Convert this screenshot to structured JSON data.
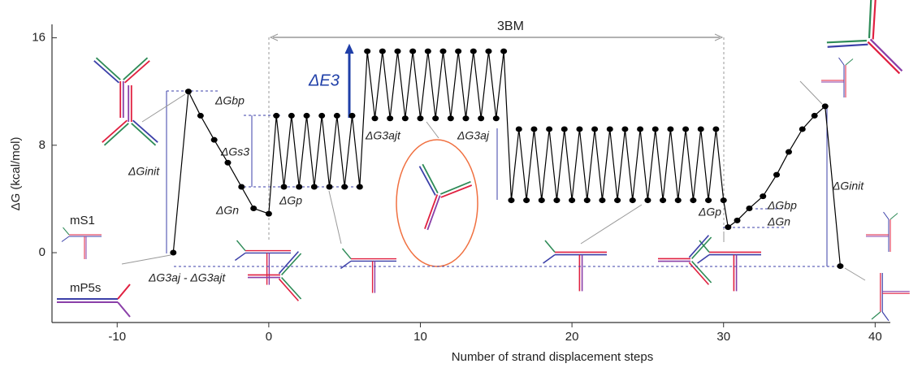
{
  "chart_data": {
    "type": "line",
    "xlabel": "Number of strand displacement steps",
    "ylabel": "ΔG (kcal/mol)",
    "color": "#000000",
    "xlim": [
      -14.3,
      41.0
    ],
    "ylim": [
      -5.2,
      17
    ],
    "xticks": [
      -10,
      0,
      10,
      20,
      30,
      40
    ],
    "yticks": [
      0,
      8,
      16
    ],
    "x": [
      -6.3,
      -5.3,
      -4.5,
      -3.6,
      -2.7,
      -1.8,
      -1.0,
      0,
      0.5,
      1,
      1.5,
      2,
      2.5,
      3,
      3.5,
      4,
      4.5,
      5,
      5.5,
      6,
      6.5,
      7,
      7.5,
      8,
      8.5,
      9,
      9.5,
      10,
      10.5,
      11,
      11.5,
      12,
      12.5,
      13,
      13.5,
      14,
      14.5,
      15,
      15.5,
      16,
      16.5,
      17,
      17.5,
      18,
      18.5,
      19,
      19.5,
      20,
      20.5,
      21,
      21.5,
      22,
      22.5,
      23,
      23.5,
      24,
      24.5,
      25,
      25.5,
      26,
      26.5,
      27,
      27.5,
      28,
      28.5,
      29,
      29.5,
      30,
      30.3,
      30.9,
      31.7,
      32.6,
      33.5,
      34.3,
      35.2,
      36.0,
      36.7,
      37.7
    ],
    "values": [
      0,
      12.0,
      10.2,
      8.4,
      6.7,
      4.9,
      3.3,
      2.9,
      10.2,
      4.9,
      10.2,
      4.9,
      10.2,
      4.9,
      10.2,
      4.9,
      10.2,
      4.9,
      10.2,
      4.9,
      15.0,
      10.0,
      15.0,
      10.0,
      15.0,
      10.0,
      15.0,
      10.0,
      15.0,
      10.0,
      15.0,
      10.0,
      15.0,
      10.0,
      15.0,
      10.0,
      15.0,
      10.0,
      15.0,
      3.9,
      9.2,
      3.9,
      9.2,
      3.9,
      9.2,
      3.9,
      9.2,
      3.9,
      9.2,
      3.9,
      9.2,
      3.9,
      9.2,
      3.9,
      9.2,
      3.9,
      9.2,
      3.9,
      9.2,
      3.9,
      9.2,
      3.9,
      9.2,
      3.9,
      9.2,
      3.9,
      9.2,
      3.9,
      1.9,
      2.4,
      3.3,
      4.2,
      5.8,
      7.5,
      9.2,
      10.2,
      10.9,
      -1.0
    ],
    "annotations": [
      "ΔGbp",
      "ΔGs3",
      "ΔGinit",
      "ΔGn",
      "ΔGp",
      "ΔE3",
      "ΔG3ajt",
      "ΔG3aj",
      "ΔG3aj - ΔG3ajt",
      "3BM",
      "mS1",
      "mP5s",
      "ΔGbp",
      "ΔGn",
      "ΔGp",
      "ΔGinit"
    ]
  }
}
